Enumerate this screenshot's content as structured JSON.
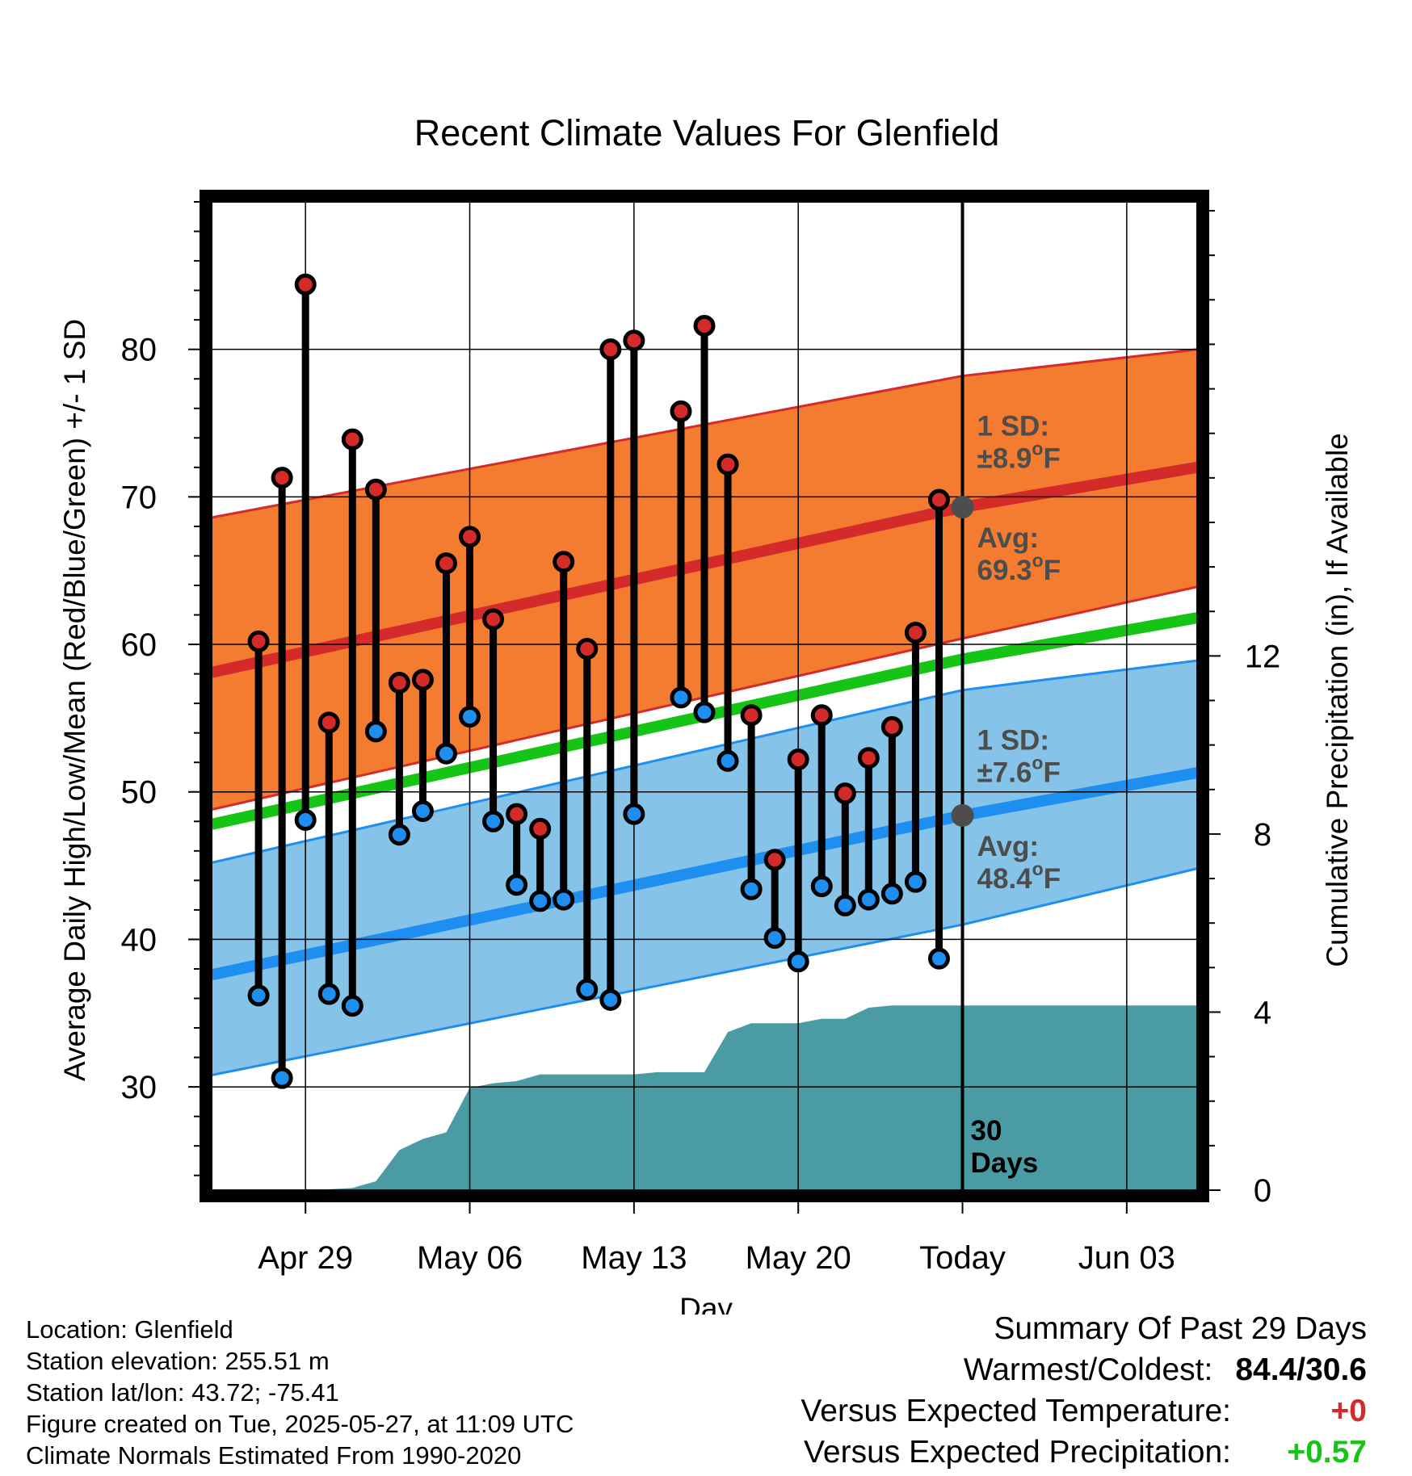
{
  "chart_data": {
    "type": "line",
    "title": "Recent Climate Values For Glenfield",
    "xlabel": "Day",
    "ylabel": "Average Daily High/Low/Mean (Red/Blue/Green) +/- 1 SD",
    "y2label": "Cumulative Precipitation (in), If Available",
    "x_range": [
      "2025-04-25",
      "2025-06-06"
    ],
    "ylim": [
      23,
      90
    ],
    "y2lim": [
      0,
      22.2
    ],
    "yticks": [
      30,
      40,
      50,
      60,
      70,
      80
    ],
    "y2ticks": [
      0,
      4,
      8,
      12
    ],
    "xticks": [
      {
        "date": "2025-04-29",
        "label": "Apr 29"
      },
      {
        "date": "2025-05-06",
        "label": "May 06"
      },
      {
        "date": "2025-05-13",
        "label": "May 13"
      },
      {
        "date": "2025-05-20",
        "label": "May 20"
      },
      {
        "date": "2025-05-27",
        "label": "Today"
      },
      {
        "date": "2025-06-03",
        "label": "Jun 03"
      }
    ],
    "grid": true,
    "today": "2025-05-27",
    "today_label": "30 Days",
    "normals": {
      "x": [
        "2025-04-25",
        "2025-05-27",
        "2025-06-06"
      ],
      "avg_high": [
        58.1,
        69.3,
        72.0
      ],
      "high_sd_upper": [
        68.6,
        78.2,
        80.0
      ],
      "high_sd_lower": [
        48.8,
        60.4,
        63.9
      ],
      "avg_mean": [
        47.8,
        59.0,
        61.8
      ],
      "avg_low": [
        37.6,
        48.4,
        51.3
      ],
      "low_sd_upper": [
        45.2,
        56.9,
        58.9
      ],
      "low_sd_lower": [
        30.8,
        41.0,
        44.8
      ]
    },
    "high_sd_label": "1 SD:",
    "high_sd_value": "±8.9°F",
    "high_avg_label": "Avg:",
    "high_avg_value": "69.3°F",
    "low_sd_label": "1 SD:",
    "low_sd_value": "±7.6°F",
    "low_avg_label": "Avg:",
    "low_avg_value": "48.4°F",
    "series": [
      {
        "name": "High",
        "color": "#d42a2a",
        "x": [
          "2025-04-27",
          "2025-04-28",
          "2025-04-29",
          "2025-04-30",
          "2025-05-01",
          "2025-05-02",
          "2025-05-03",
          "2025-05-04",
          "2025-05-05",
          "2025-05-06",
          "2025-05-07",
          "2025-05-08",
          "2025-05-09",
          "2025-05-10",
          "2025-05-11",
          "2025-05-12",
          "2025-05-13",
          "2025-05-15",
          "2025-05-16",
          "2025-05-17",
          "2025-05-18",
          "2025-05-19",
          "2025-05-20",
          "2025-05-21",
          "2025-05-22",
          "2025-05-23",
          "2025-05-24",
          "2025-05-25",
          "2025-05-26"
        ],
        "values": [
          60.2,
          71.3,
          84.4,
          54.7,
          73.9,
          70.5,
          57.4,
          57.6,
          65.5,
          67.3,
          61.7,
          48.5,
          47.5,
          65.6,
          59.7,
          80.0,
          80.6,
          75.8,
          81.6,
          72.2,
          55.2,
          45.4,
          52.2,
          55.2,
          49.9,
          52.3,
          54.4,
          60.8,
          69.8
        ]
      },
      {
        "name": "Low",
        "color": "#1e8ff0",
        "x": [
          "2025-04-27",
          "2025-04-28",
          "2025-04-29",
          "2025-04-30",
          "2025-05-01",
          "2025-05-02",
          "2025-05-03",
          "2025-05-04",
          "2025-05-05",
          "2025-05-06",
          "2025-05-07",
          "2025-05-08",
          "2025-05-09",
          "2025-05-10",
          "2025-05-11",
          "2025-05-12",
          "2025-05-13",
          "2025-05-15",
          "2025-05-16",
          "2025-05-17",
          "2025-05-18",
          "2025-05-19",
          "2025-05-20",
          "2025-05-21",
          "2025-05-22",
          "2025-05-23",
          "2025-05-24",
          "2025-05-25",
          "2025-05-26"
        ],
        "values": [
          36.2,
          30.6,
          48.1,
          36.3,
          35.5,
          54.1,
          47.1,
          48.7,
          52.6,
          55.1,
          48.0,
          43.7,
          42.6,
          42.7,
          36.6,
          35.9,
          48.5,
          56.4,
          55.4,
          52.1,
          43.4,
          40.1,
          38.5,
          43.6,
          42.3,
          42.7,
          43.1,
          43.9,
          38.7
        ]
      },
      {
        "name": "Cumulative Precipitation",
        "color": "#4a9ba4",
        "x": [
          "2025-04-25",
          "2025-04-26",
          "2025-04-27",
          "2025-04-28",
          "2025-04-29",
          "2025-04-30",
          "2025-05-01",
          "2025-05-02",
          "2025-05-03",
          "2025-05-04",
          "2025-05-05",
          "2025-05-06",
          "2025-05-07",
          "2025-05-08",
          "2025-05-09",
          "2025-05-10",
          "2025-05-11",
          "2025-05-12",
          "2025-05-13",
          "2025-05-14",
          "2025-05-15",
          "2025-05-16",
          "2025-05-17",
          "2025-05-18",
          "2025-05-19",
          "2025-05-20",
          "2025-05-21",
          "2025-05-22",
          "2025-05-23",
          "2025-05-24",
          "2025-05-25",
          "2025-05-26",
          "2025-05-27",
          "2025-06-06"
        ],
        "values": [
          0.0,
          0.0,
          0.0,
          0.0,
          0.0,
          0.02,
          0.05,
          0.2,
          0.9,
          1.15,
          1.3,
          2.3,
          2.4,
          2.45,
          2.6,
          2.6,
          2.6,
          2.6,
          2.6,
          2.65,
          2.65,
          2.65,
          3.55,
          3.75,
          3.75,
          3.75,
          3.85,
          3.85,
          4.1,
          4.15,
          4.15,
          4.15,
          4.15,
          4.15
        ]
      }
    ]
  },
  "info": {
    "location": "Location: Glenfield",
    "elevation": "Station elevation: 255.51 m",
    "latlon": "Station lat/lon: 43.72; -75.41",
    "created": "Figure created on Tue, 2025-05-27, at 11:09 UTC",
    "normals_period": "Climate Normals Estimated From 1990-2020"
  },
  "summary": {
    "heading": "Summary Of Past 29 Days",
    "warmest_label": "Warmest/Coldest:",
    "warmest_value": "84.4/30.6",
    "temp_label": "Versus Expected Temperature:",
    "temp_value": "+0",
    "temp_color": "#d42a2a",
    "precip_label": "Versus Expected Precipitation:",
    "precip_value": "+0.57",
    "precip_color": "#16c416"
  }
}
